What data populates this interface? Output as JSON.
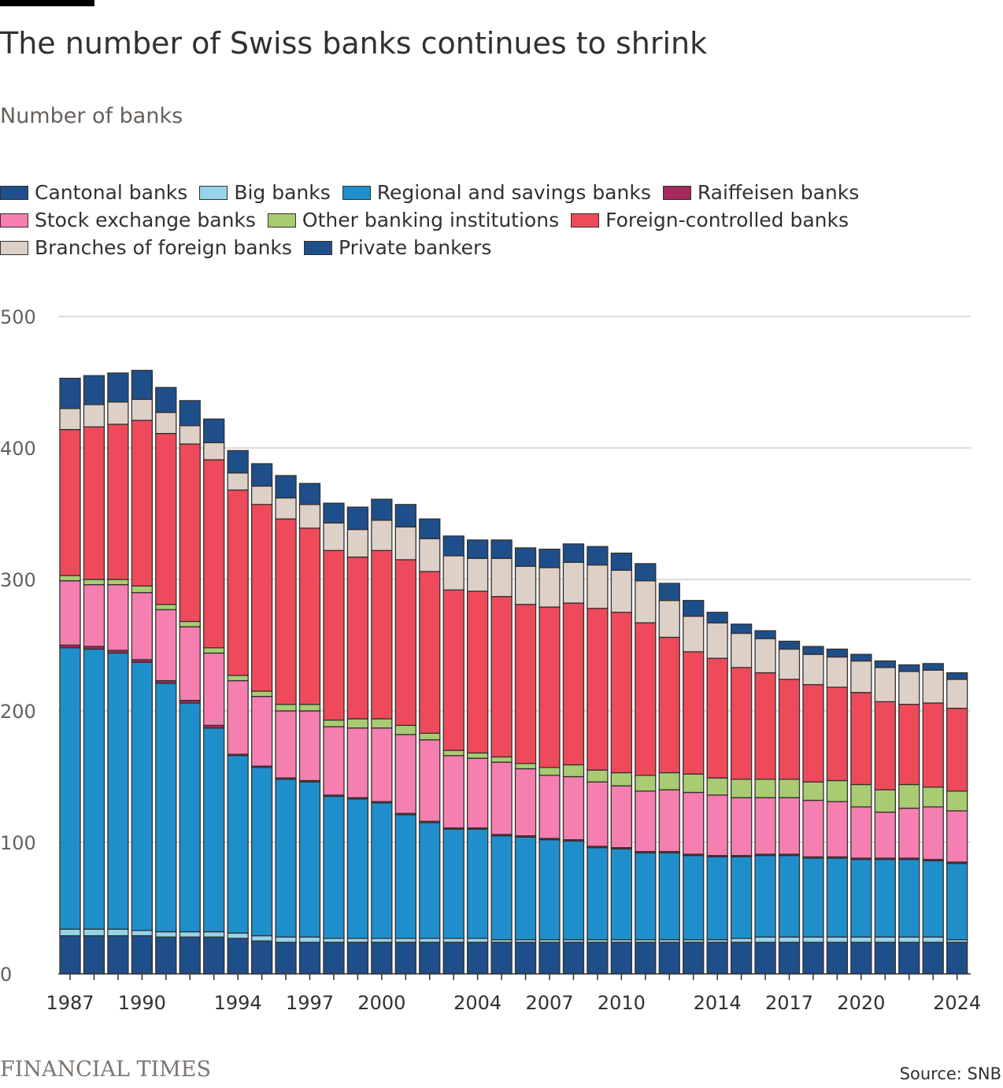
{
  "title": "The number of Swiss banks continues to shrink",
  "subtitle": "Number of banks",
  "source": "Source: SNB",
  "logo": "FINANCIAL TIMES",
  "colors": {
    "cantonal": "#1f4f8a",
    "big": "#96d3eb",
    "regional": "#1f8fcc",
    "raiffeisen": "#a42a5e",
    "stock": "#f57fb0",
    "other": "#a9cc72",
    "foreign_controlled": "#ef4a5b",
    "branches": "#ddd0c7",
    "private": "#1f4f8a",
    "grid": "#d9cec6",
    "stroke": "#33302e"
  },
  "chart_data": {
    "type": "bar",
    "stacked": true,
    "title": "The number of Swiss banks continues to shrink",
    "ylabel": "Number of banks",
    "xlabel": "",
    "ylim": [
      0,
      500
    ],
    "yticks": [
      0,
      100,
      200,
      300,
      400,
      500
    ],
    "xtick_labels": [
      "1987",
      "1990",
      "1994",
      "1997",
      "2000",
      "2004",
      "2007",
      "2010",
      "2014",
      "2017",
      "2020",
      "2024"
    ],
    "grid": "horizontal",
    "legend_position": "top",
    "categories": [
      1987,
      1988,
      1989,
      1990,
      1991,
      1992,
      1993,
      1994,
      1995,
      1996,
      1997,
      1998,
      1999,
      2000,
      2001,
      2002,
      2003,
      2004,
      2005,
      2006,
      2007,
      2008,
      2009,
      2010,
      2011,
      2012,
      2013,
      2014,
      2015,
      2016,
      2017,
      2018,
      2019,
      2020,
      2021,
      2022,
      2023,
      2024
    ],
    "series": [
      {
        "name": "Cantonal banks",
        "key": "cantonal",
        "values": [
          29,
          29,
          29,
          29,
          28,
          28,
          28,
          27,
          25,
          24,
          24,
          24,
          24,
          24,
          24,
          24,
          24,
          24,
          24,
          24,
          24,
          24,
          24,
          24,
          24,
          24,
          24,
          24,
          24,
          24,
          24,
          24,
          24,
          24,
          24,
          24,
          24,
          24
        ]
      },
      {
        "name": "Big banks",
        "key": "big",
        "values": [
          5,
          5,
          5,
          4,
          4,
          4,
          4,
          4,
          4,
          4,
          4,
          3,
          3,
          3,
          3,
          3,
          3,
          3,
          2,
          2,
          2,
          2,
          2,
          2,
          2,
          2,
          2,
          2,
          3,
          4,
          4,
          4,
          4,
          4,
          4,
          4,
          4,
          2
        ]
      },
      {
        "name": "Regional and savings banks",
        "key": "regional",
        "values": [
          214,
          213,
          210,
          204,
          189,
          174,
          155,
          135,
          128,
          120,
          118,
          108,
          106,
          103,
          94,
          88,
          83,
          83,
          79,
          78,
          76,
          75,
          70,
          69,
          66,
          66,
          64,
          63,
          62,
          62,
          62,
          60,
          60,
          59,
          59,
          59,
          58,
          58
        ]
      },
      {
        "name": "Raiffeisen banks",
        "key": "raiffeisen",
        "values": [
          2,
          2,
          2,
          2,
          2,
          2,
          2,
          1,
          1,
          1,
          1,
          1,
          1,
          1,
          1,
          1,
          1,
          1,
          1,
          1,
          1,
          1,
          1,
          1,
          1,
          1,
          1,
          1,
          1,
          1,
          1,
          1,
          1,
          1,
          1,
          1,
          1,
          1
        ]
      },
      {
        "name": "Stock exchange banks",
        "key": "stock",
        "values": [
          49,
          47,
          50,
          51,
          54,
          56,
          55,
          56,
          53,
          51,
          53,
          52,
          53,
          56,
          60,
          62,
          55,
          53,
          55,
          51,
          48,
          48,
          49,
          47,
          46,
          47,
          47,
          46,
          44,
          43,
          43,
          43,
          42,
          39,
          35,
          38,
          40,
          39
        ]
      },
      {
        "name": "Other banking institutions",
        "key": "other",
        "values": [
          4,
          4,
          4,
          5,
          4,
          4,
          4,
          4,
          4,
          5,
          5,
          5,
          7,
          7,
          7,
          5,
          4,
          4,
          4,
          4,
          6,
          9,
          9,
          10,
          12,
          13,
          14,
          13,
          14,
          14,
          14,
          14,
          16,
          17,
          17,
          18,
          15,
          15
        ]
      },
      {
        "name": "Foreign-controlled banks",
        "key": "foreign_controlled",
        "values": [
          111,
          116,
          118,
          126,
          130,
          135,
          143,
          141,
          142,
          141,
          134,
          129,
          123,
          128,
          126,
          123,
          122,
          123,
          122,
          121,
          122,
          123,
          123,
          122,
          116,
          103,
          93,
          91,
          85,
          81,
          76,
          74,
          71,
          70,
          67,
          61,
          64,
          63
        ]
      },
      {
        "name": "Branches of foreign banks",
        "key": "branches",
        "values": [
          16,
          17,
          17,
          16,
          16,
          14,
          13,
          13,
          14,
          16,
          18,
          21,
          21,
          23,
          25,
          25,
          26,
          25,
          29,
          29,
          30,
          31,
          33,
          32,
          32,
          28,
          27,
          27,
          26,
          26,
          23,
          23,
          23,
          24,
          26,
          25,
          25,
          22
        ]
      },
      {
        "name": "Private bankers",
        "key": "private",
        "values": [
          23,
          22,
          22,
          22,
          19,
          19,
          18,
          17,
          17,
          17,
          16,
          15,
          17,
          16,
          17,
          15,
          15,
          14,
          14,
          14,
          14,
          14,
          14,
          13,
          13,
          13,
          12,
          8,
          7,
          6,
          6,
          6,
          6,
          5,
          5,
          5,
          5,
          5
        ]
      }
    ]
  }
}
